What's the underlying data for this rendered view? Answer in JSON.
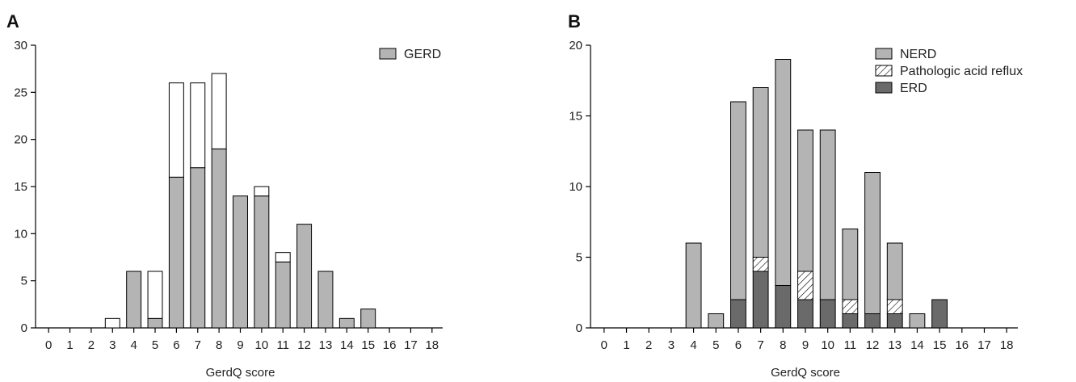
{
  "colors": {
    "gerd": "#b4b4b4",
    "ERD": "#6a6a6a",
    "NERD": "#b4b4b4",
    "acid": "#ffffff",
    "outline": "#000000"
  },
  "chart_data": [
    {
      "type": "bar",
      "panel": "A",
      "stacked": true,
      "categories": [
        "0",
        "1",
        "2",
        "3",
        "4",
        "5",
        "6",
        "7",
        "8",
        "9",
        "10",
        "11",
        "12",
        "13",
        "14",
        "15",
        "16",
        "17",
        "18"
      ],
      "series": [
        {
          "name": "GERD",
          "key": "gerd",
          "values": [
            0,
            0,
            0,
            0,
            6,
            1,
            16,
            17,
            19,
            14,
            14,
            7,
            11,
            6,
            1,
            2,
            0,
            0,
            0
          ]
        },
        {
          "key": "other",
          "values": [
            0,
            0,
            0,
            1,
            0,
            5,
            10,
            9,
            8,
            0,
            1,
            1,
            0,
            0,
            0,
            0,
            0,
            0,
            0
          ]
        }
      ],
      "xlabel": "GerdQ score",
      "ylabel": "",
      "ylim": [
        0,
        30
      ],
      "yticks": [
        0,
        5,
        10,
        15,
        20,
        25,
        30
      ],
      "legend_position": "top-right",
      "grid": false
    },
    {
      "type": "bar",
      "panel": "B",
      "stacked": true,
      "categories": [
        "0",
        "1",
        "2",
        "3",
        "4",
        "5",
        "6",
        "7",
        "8",
        "9",
        "10",
        "11",
        "12",
        "13",
        "14",
        "15",
        "16",
        "17",
        "18"
      ],
      "series": [
        {
          "name": "ERD",
          "key": "ERD",
          "values": [
            0,
            0,
            0,
            0,
            0,
            0,
            2,
            4,
            3,
            2,
            2,
            1,
            1,
            1,
            0,
            2,
            0,
            0,
            0
          ]
        },
        {
          "name": "Pathologic acid reflux",
          "key": "acid",
          "values": [
            0,
            0,
            0,
            0,
            0,
            0,
            0,
            1,
            0,
            2,
            0,
            1,
            0,
            1,
            0,
            0,
            0,
            0,
            0
          ]
        },
        {
          "name": "NERD",
          "key": "NERD",
          "values": [
            0,
            0,
            0,
            0,
            6,
            1,
            14,
            12,
            16,
            10,
            12,
            5,
            10,
            4,
            1,
            0,
            0,
            0,
            0
          ]
        }
      ],
      "legend_order": [
        "NERD",
        "Pathologic acid reflux",
        "ERD"
      ],
      "xlabel": "GerdQ score",
      "ylabel": "",
      "ylim": [
        0,
        20
      ],
      "yticks": [
        0,
        5,
        10,
        15,
        20
      ],
      "legend_position": "top-right",
      "grid": false
    }
  ]
}
